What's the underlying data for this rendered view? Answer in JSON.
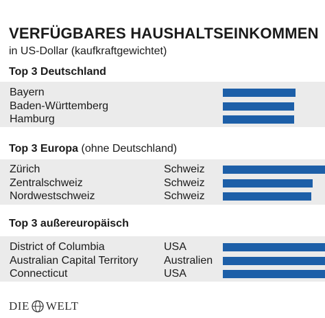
{
  "title": "VERFÜGBARES HAUSHALTSEINKOMMEN",
  "subtitle": "in US-Dollar (kaufkraftgewichtet)",
  "sections": [
    {
      "heading": "Top 3 Deutschland",
      "note": ""
    },
    {
      "heading": "Top 3 Europa",
      "note": " (ohne Deutschland)"
    },
    {
      "heading": "Top 3 außereuropäisch",
      "note": ""
    }
  ],
  "logo": {
    "left": "DIE",
    "right": "WELT"
  },
  "colors": {
    "bar": "#1d5fa8",
    "panel": "#ebebeb"
  },
  "chart_data": {
    "type": "bar",
    "orientation": "horizontal",
    "title": "VERFÜGBARES HAUSHALTSEINKOMMEN",
    "subtitle": "in US-Dollar (kaufkraftgewichtet)",
    "groups": [
      {
        "name": "Top 3 Deutschland",
        "rows": [
          {
            "label": "Bayern",
            "country": "",
            "value": 23.5
          },
          {
            "label": "Baden-Württemberg",
            "country": "",
            "value": 23.0
          },
          {
            "label": "Hamburg",
            "country": "",
            "value": 23.0
          }
        ]
      },
      {
        "name": "Top 3 Europa (ohne Deutschland)",
        "rows": [
          {
            "label": "Zürich",
            "country": "Schweiz",
            "value": 33.0
          },
          {
            "label": "Zentralschweiz",
            "country": "Schweiz",
            "value": 29.0
          },
          {
            "label": "Nordwestschweiz",
            "country": "Schweiz",
            "value": 28.5
          }
        ]
      },
      {
        "name": "Top 3 außereuropäisch",
        "rows": [
          {
            "label": "District of Columbia",
            "country": "USA",
            "value": 45.0
          },
          {
            "label": "Australian Capital Territory",
            "country": "Australien",
            "value": 40.0
          },
          {
            "label": "Connecticut",
            "country": "USA",
            "value": 39.0
          }
        ]
      }
    ],
    "xlim": [
      0,
      33
    ]
  }
}
